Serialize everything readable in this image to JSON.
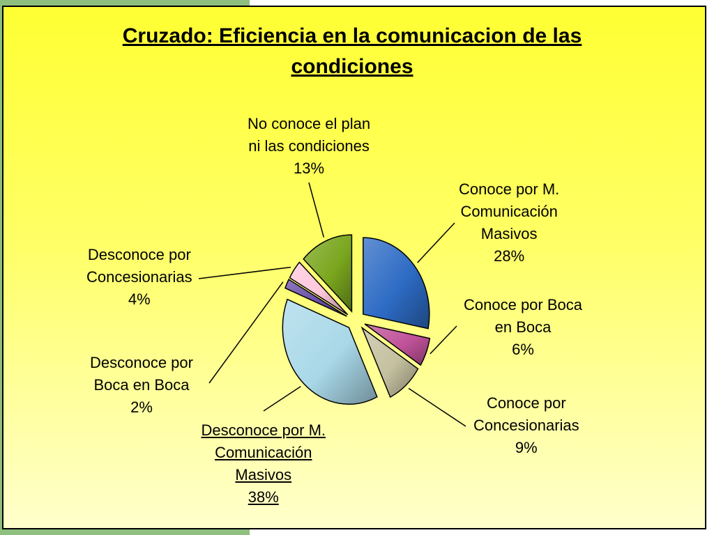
{
  "chart_data": {
    "type": "pie",
    "title_lines": [
      "Cruzado: Eficiencia en la comunicacion de las",
      "condiciones"
    ],
    "slices": [
      {
        "label_lines": [
          "Conoce por M.",
          "Comunicación",
          "Masivos"
        ],
        "value": 28,
        "value_label": "28%",
        "color": "#2d6bc4",
        "underline": false
      },
      {
        "label_lines": [
          "Conoce por Boca",
          "en Boca"
        ],
        "value": 6,
        "value_label": "6%",
        "color": "#c0529a",
        "underline": false
      },
      {
        "label_lines": [
          "Conoce por",
          "Concesionarias"
        ],
        "value": 9,
        "value_label": "9%",
        "color": "#c4c0a0",
        "underline": false
      },
      {
        "label_lines": [
          "Desconoce por M.",
          "Comunicación",
          "Masivos"
        ],
        "value": 38,
        "value_label": "38%",
        "color": "#a9d8e8",
        "underline": true
      },
      {
        "label_lines": [
          "Desconoce por",
          "Boca en Boca"
        ],
        "value": 2,
        "value_label": "2%",
        "color": "#6a4fa8",
        "underline": false
      },
      {
        "label_lines": [
          "Desconoce por",
          "Concesionarias"
        ],
        "value": 4,
        "value_label": "4%",
        "color": "#ffc8dc",
        "underline": false
      },
      {
        "label_lines": [
          "No conoce el plan",
          "ni las condiciones"
        ],
        "value": 13,
        "value_label": "13%",
        "color": "#7aa61e",
        "underline": false
      }
    ]
  }
}
